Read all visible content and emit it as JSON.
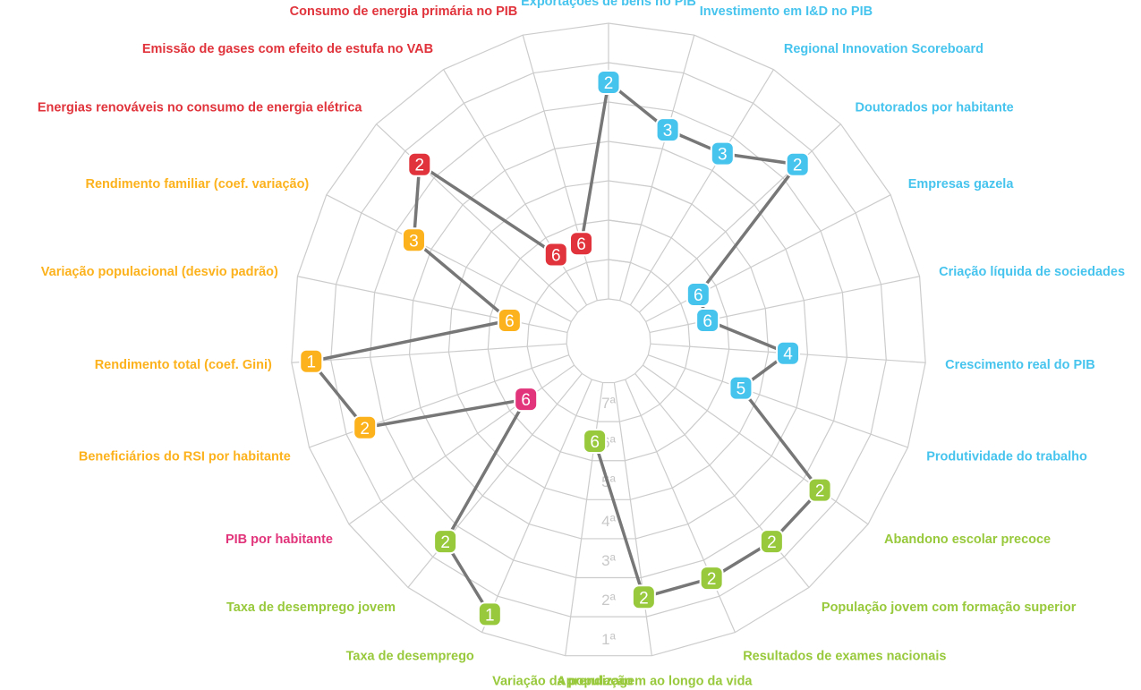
{
  "chart_data": {
    "type": "radar",
    "rank_labels": [
      "1ª",
      "2ª",
      "3ª",
      "4ª",
      "5ª",
      "6ª",
      "7ª"
    ],
    "r_range": [
      1,
      7
    ],
    "direction": "1 outer, 7 inner",
    "grid": true,
    "colors": {
      "blue": "#47c4ee",
      "red": "#e0333b",
      "orange": "#fcb21c",
      "magenta": "#e1347a",
      "green": "#98c93c",
      "line": "#777777",
      "grid": "#cccccc"
    },
    "axes": [
      {
        "label": "Exportações de bens no PIB",
        "rank": 2,
        "group": "blue"
      },
      {
        "label": "Investimento em I&D no PIB",
        "rank": 3,
        "group": "blue"
      },
      {
        "label": "Regional Innovation Scoreboard",
        "rank": 3,
        "group": "blue"
      },
      {
        "label": "Doutorados por habitante",
        "rank": 2,
        "group": "blue"
      },
      {
        "label": "Empresas gazela",
        "rank": 6,
        "group": "blue"
      },
      {
        "label": "Criação líquida de sociedades",
        "rank": 6,
        "group": "blue"
      },
      {
        "label": "Crescimento real do PIB",
        "rank": 4,
        "group": "blue"
      },
      {
        "label": "Produtividade do trabalho",
        "rank": 5,
        "group": "blue"
      },
      {
        "label": "Abandono escolar precoce",
        "rank": 2,
        "group": "green"
      },
      {
        "label": "População jovem com formação superior",
        "rank": 2,
        "group": "green"
      },
      {
        "label": "Resultados de exames nacionais",
        "rank": 2,
        "group": "green"
      },
      {
        "label": "Aprendizagem ao longo da vida",
        "rank": 2,
        "group": "green"
      },
      {
        "label": "Variação da população",
        "rank": 6,
        "group": "green"
      },
      {
        "label": "Taxa de desemprego",
        "rank": 1,
        "group": "green"
      },
      {
        "label": "Taxa de desemprego jovem",
        "rank": 2,
        "group": "green"
      },
      {
        "label": "PIB por habitante",
        "rank": 6,
        "group": "magenta"
      },
      {
        "label": "Beneficiários do RSI por habitante",
        "rank": 2,
        "group": "orange"
      },
      {
        "label": "Rendimento total (coef. Gini)",
        "rank": 1,
        "group": "orange"
      },
      {
        "label": "Variação populacional (desvio padrão)",
        "rank": 6,
        "group": "orange"
      },
      {
        "label": "Rendimento familiar (coef. variação)",
        "rank": 3,
        "group": "orange"
      },
      {
        "label": "Energias renováveis no consumo de energia elétrica",
        "rank": 2,
        "group": "red"
      },
      {
        "label": "Emissão de gases com efeito de estufa no VAB",
        "rank": 6,
        "group": "red"
      },
      {
        "label": "Consumo de energia primária no PIB",
        "rank": 6,
        "group": "red"
      }
    ]
  }
}
